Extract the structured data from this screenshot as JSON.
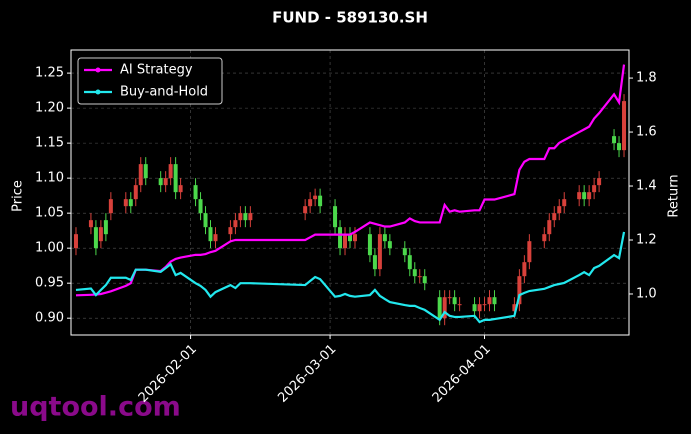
{
  "chart_data": {
    "type": "candlestick-returns",
    "title": "FUND - 589130.SH",
    "y_label": "Price",
    "y2_label": "Return",
    "watermark": "uqtool.com",
    "x": [
      "2026-01-09",
      "2026-01-12",
      "2026-01-13",
      "2026-01-14",
      "2026-01-15",
      "2026-01-16",
      "2026-01-19",
      "2026-01-20",
      "2026-01-21",
      "2026-01-22",
      "2026-01-23",
      "2026-01-26",
      "2026-01-27",
      "2026-01-28",
      "2026-01-29",
      "2026-01-30",
      "2026-02-02",
      "2026-02-03",
      "2026-02-04",
      "2026-02-05",
      "2026-02-06",
      "2026-02-09",
      "2026-02-10",
      "2026-02-11",
      "2026-02-12",
      "2026-02-13",
      "2026-02-24",
      "2026-02-25",
      "2026-02-26",
      "2026-02-27",
      "2026-03-02",
      "2026-03-03",
      "2026-03-04",
      "2026-03-05",
      "2026-03-06",
      "2026-03-09",
      "2026-03-10",
      "2026-03-11",
      "2026-03-12",
      "2026-03-13",
      "2026-03-16",
      "2026-03-17",
      "2026-03-18",
      "2026-03-19",
      "2026-03-20",
      "2026-03-23",
      "2026-03-24",
      "2026-03-25",
      "2026-03-26",
      "2026-03-27",
      "2026-03-30",
      "2026-03-31",
      "2026-04-01",
      "2026-04-02",
      "2026-04-03",
      "2026-04-07",
      "2026-04-08",
      "2026-04-09",
      "2026-04-10",
      "2026-04-13",
      "2026-04-14",
      "2026-04-15",
      "2026-04-16",
      "2026-04-17",
      "2026-04-20",
      "2026-04-21",
      "2026-04-22",
      "2026-04-23",
      "2026-04-24",
      "2026-04-27",
      "2026-04-28",
      "2026-04-29"
    ],
    "open": [
      1.0,
      1.03,
      1.03,
      1.01,
      1.04,
      1.05,
      1.06,
      1.07,
      1.07,
      1.09,
      1.12,
      1.1,
      1.09,
      1.1,
      1.12,
      1.08,
      1.09,
      1.07,
      1.05,
      1.03,
      1.01,
      1.02,
      1.03,
      1.04,
      1.05,
      1.04,
      1.05,
      1.06,
      1.07,
      1.075,
      1.06,
      1.03,
      1.0,
      1.02,
      1.01,
      1.02,
      0.99,
      0.97,
      1.02,
      1.01,
      1.0,
      0.99,
      0.97,
      0.96,
      0.96,
      0.93,
      0.9,
      0.93,
      0.93,
      0.92,
      0.92,
      0.91,
      0.92,
      0.92,
      0.93,
      0.91,
      0.92,
      0.96,
      0.98,
      1.01,
      1.02,
      1.04,
      1.05,
      1.06,
      1.07,
      1.08,
      1.07,
      1.08,
      1.09,
      1.16,
      1.15,
      1.14
    ],
    "high": [
      1.03,
      1.05,
      1.04,
      1.04,
      1.05,
      1.08,
      1.08,
      1.08,
      1.1,
      1.13,
      1.13,
      1.11,
      1.11,
      1.13,
      1.13,
      1.1,
      1.1,
      1.08,
      1.06,
      1.04,
      1.03,
      1.04,
      1.05,
      1.06,
      1.06,
      1.06,
      1.07,
      1.08,
      1.085,
      1.085,
      1.07,
      1.04,
      1.03,
      1.03,
      1.03,
      1.03,
      1.0,
      1.03,
      1.03,
      1.02,
      1.01,
      1.0,
      0.98,
      0.97,
      0.97,
      0.94,
      0.94,
      0.94,
      0.94,
      0.93,
      0.93,
      0.93,
      0.93,
      0.94,
      0.94,
      0.93,
      0.97,
      0.99,
      1.02,
      1.03,
      1.05,
      1.06,
      1.07,
      1.08,
      1.09,
      1.09,
      1.09,
      1.1,
      1.11,
      1.17,
      1.16,
      1.22
    ],
    "low": [
      0.99,
      1.02,
      0.99,
      1.0,
      1.01,
      1.04,
      1.05,
      1.05,
      1.06,
      1.08,
      1.09,
      1.08,
      1.08,
      1.09,
      1.07,
      1.07,
      1.06,
      1.04,
      1.02,
      1.0,
      1.0,
      1.01,
      1.02,
      1.03,
      1.03,
      1.03,
      1.04,
      1.05,
      1.06,
      1.05,
      1.02,
      0.99,
      0.99,
      1.0,
      1.0,
      0.98,
      0.96,
      0.96,
      1.0,
      0.99,
      0.98,
      0.96,
      0.95,
      0.95,
      0.94,
      0.89,
      0.89,
      0.92,
      0.91,
      0.91,
      0.9,
      0.9,
      0.91,
      0.91,
      0.91,
      0.9,
      0.91,
      0.95,
      0.97,
      1.0,
      1.01,
      1.03,
      1.04,
      1.05,
      1.06,
      1.06,
      1.06,
      1.07,
      1.08,
      1.14,
      1.13,
      1.13
    ],
    "close": [
      1.02,
      1.04,
      1.0,
      1.03,
      1.02,
      1.07,
      1.07,
      1.06,
      1.09,
      1.12,
      1.1,
      1.09,
      1.1,
      1.12,
      1.08,
      1.09,
      1.07,
      1.05,
      1.03,
      1.01,
      1.02,
      1.03,
      1.04,
      1.05,
      1.04,
      1.05,
      1.06,
      1.07,
      1.075,
      1.06,
      1.03,
      1.0,
      1.02,
      1.01,
      1.02,
      0.99,
      0.97,
      1.02,
      1.01,
      1.0,
      0.99,
      0.97,
      0.96,
      0.96,
      0.95,
      0.9,
      0.93,
      0.93,
      0.92,
      0.92,
      0.91,
      0.92,
      0.92,
      0.93,
      0.92,
      0.92,
      0.96,
      0.98,
      1.01,
      1.02,
      1.04,
      1.05,
      1.06,
      1.07,
      1.08,
      1.07,
      1.08,
      1.09,
      1.1,
      1.15,
      1.14,
      1.21
    ],
    "up_color": "#d8413b",
    "down_color": "#4cd84c",
    "series": [
      {
        "name": "AI Strategy",
        "color": "#ff00ff",
        "axis": "y2",
        "values": [
          0.995,
          0.997,
          0.998,
          1.0,
          1.005,
          1.01,
          1.03,
          1.04,
          1.09,
          1.09,
          1.09,
          1.085,
          1.1,
          1.12,
          1.13,
          1.135,
          1.145,
          1.145,
          1.148,
          1.155,
          1.16,
          1.195,
          1.2,
          1.2,
          1.2,
          1.2,
          1.2,
          1.21,
          1.22,
          1.22,
          1.22,
          1.22,
          1.22,
          1.22,
          1.23,
          1.265,
          1.26,
          1.255,
          1.25,
          1.25,
          1.265,
          1.28,
          1.27,
          1.265,
          1.265,
          1.265,
          1.33,
          1.305,
          1.31,
          1.305,
          1.31,
          1.31,
          1.35,
          1.35,
          1.35,
          1.37,
          1.46,
          1.49,
          1.5,
          1.5,
          1.54,
          1.54,
          1.56,
          1.57,
          1.6,
          1.61,
          1.62,
          1.65,
          1.67,
          1.74,
          1.71,
          1.85
        ]
      },
      {
        "name": "Buy-and-Hold",
        "color": "#22e8ee",
        "axis": "y2",
        "values": [
          1.015,
          1.02,
          0.996,
          1.015,
          1.033,
          1.06,
          1.06,
          1.052,
          1.09,
          1.09,
          1.09,
          1.082,
          1.096,
          1.11,
          1.07,
          1.078,
          1.04,
          1.03,
          1.015,
          0.99,
          1.007,
          1.033,
          1.022,
          1.04,
          1.04,
          1.04,
          1.033,
          1.048,
          1.063,
          1.055,
          0.99,
          0.993,
          1.0,
          0.993,
          0.99,
          0.996,
          1.015,
          0.993,
          0.981,
          0.97,
          0.959,
          0.956,
          0.956,
          0.948,
          0.941,
          0.904,
          0.933,
          0.919,
          0.915,
          0.915,
          0.919,
          0.896,
          0.904,
          0.904,
          0.907,
          0.919,
          0.996,
          1.004,
          1.011,
          1.019,
          1.026,
          1.033,
          1.037,
          1.041,
          1.07,
          1.081,
          1.07,
          1.096,
          1.104,
          1.144,
          1.133,
          1.23
        ]
      }
    ],
    "xlim": [
      "2026-01-08",
      "2026-04-30"
    ],
    "xticks": [
      "2026-02-01",
      "2026-03-01",
      "2026-04-01"
    ],
    "ylim": [
      0.876,
      1.283
    ],
    "yticks": [
      {
        "value": 0.9,
        "label": "0.90"
      },
      0.95,
      {
        "value": 1.0,
        "label": "1.00"
      },
      1.05,
      {
        "value": 1.1,
        "label": "1.10"
      },
      1.15,
      {
        "value": 1.2,
        "label": "1.20"
      },
      1.25
    ],
    "y2lim": [
      0.848,
      1.904
    ],
    "y2ticks": [
      {
        "value": 1.0,
        "label": "1.0"
      },
      1.2,
      1.4,
      1.6,
      1.8
    ],
    "grid": true,
    "legend": "upper-left"
  }
}
